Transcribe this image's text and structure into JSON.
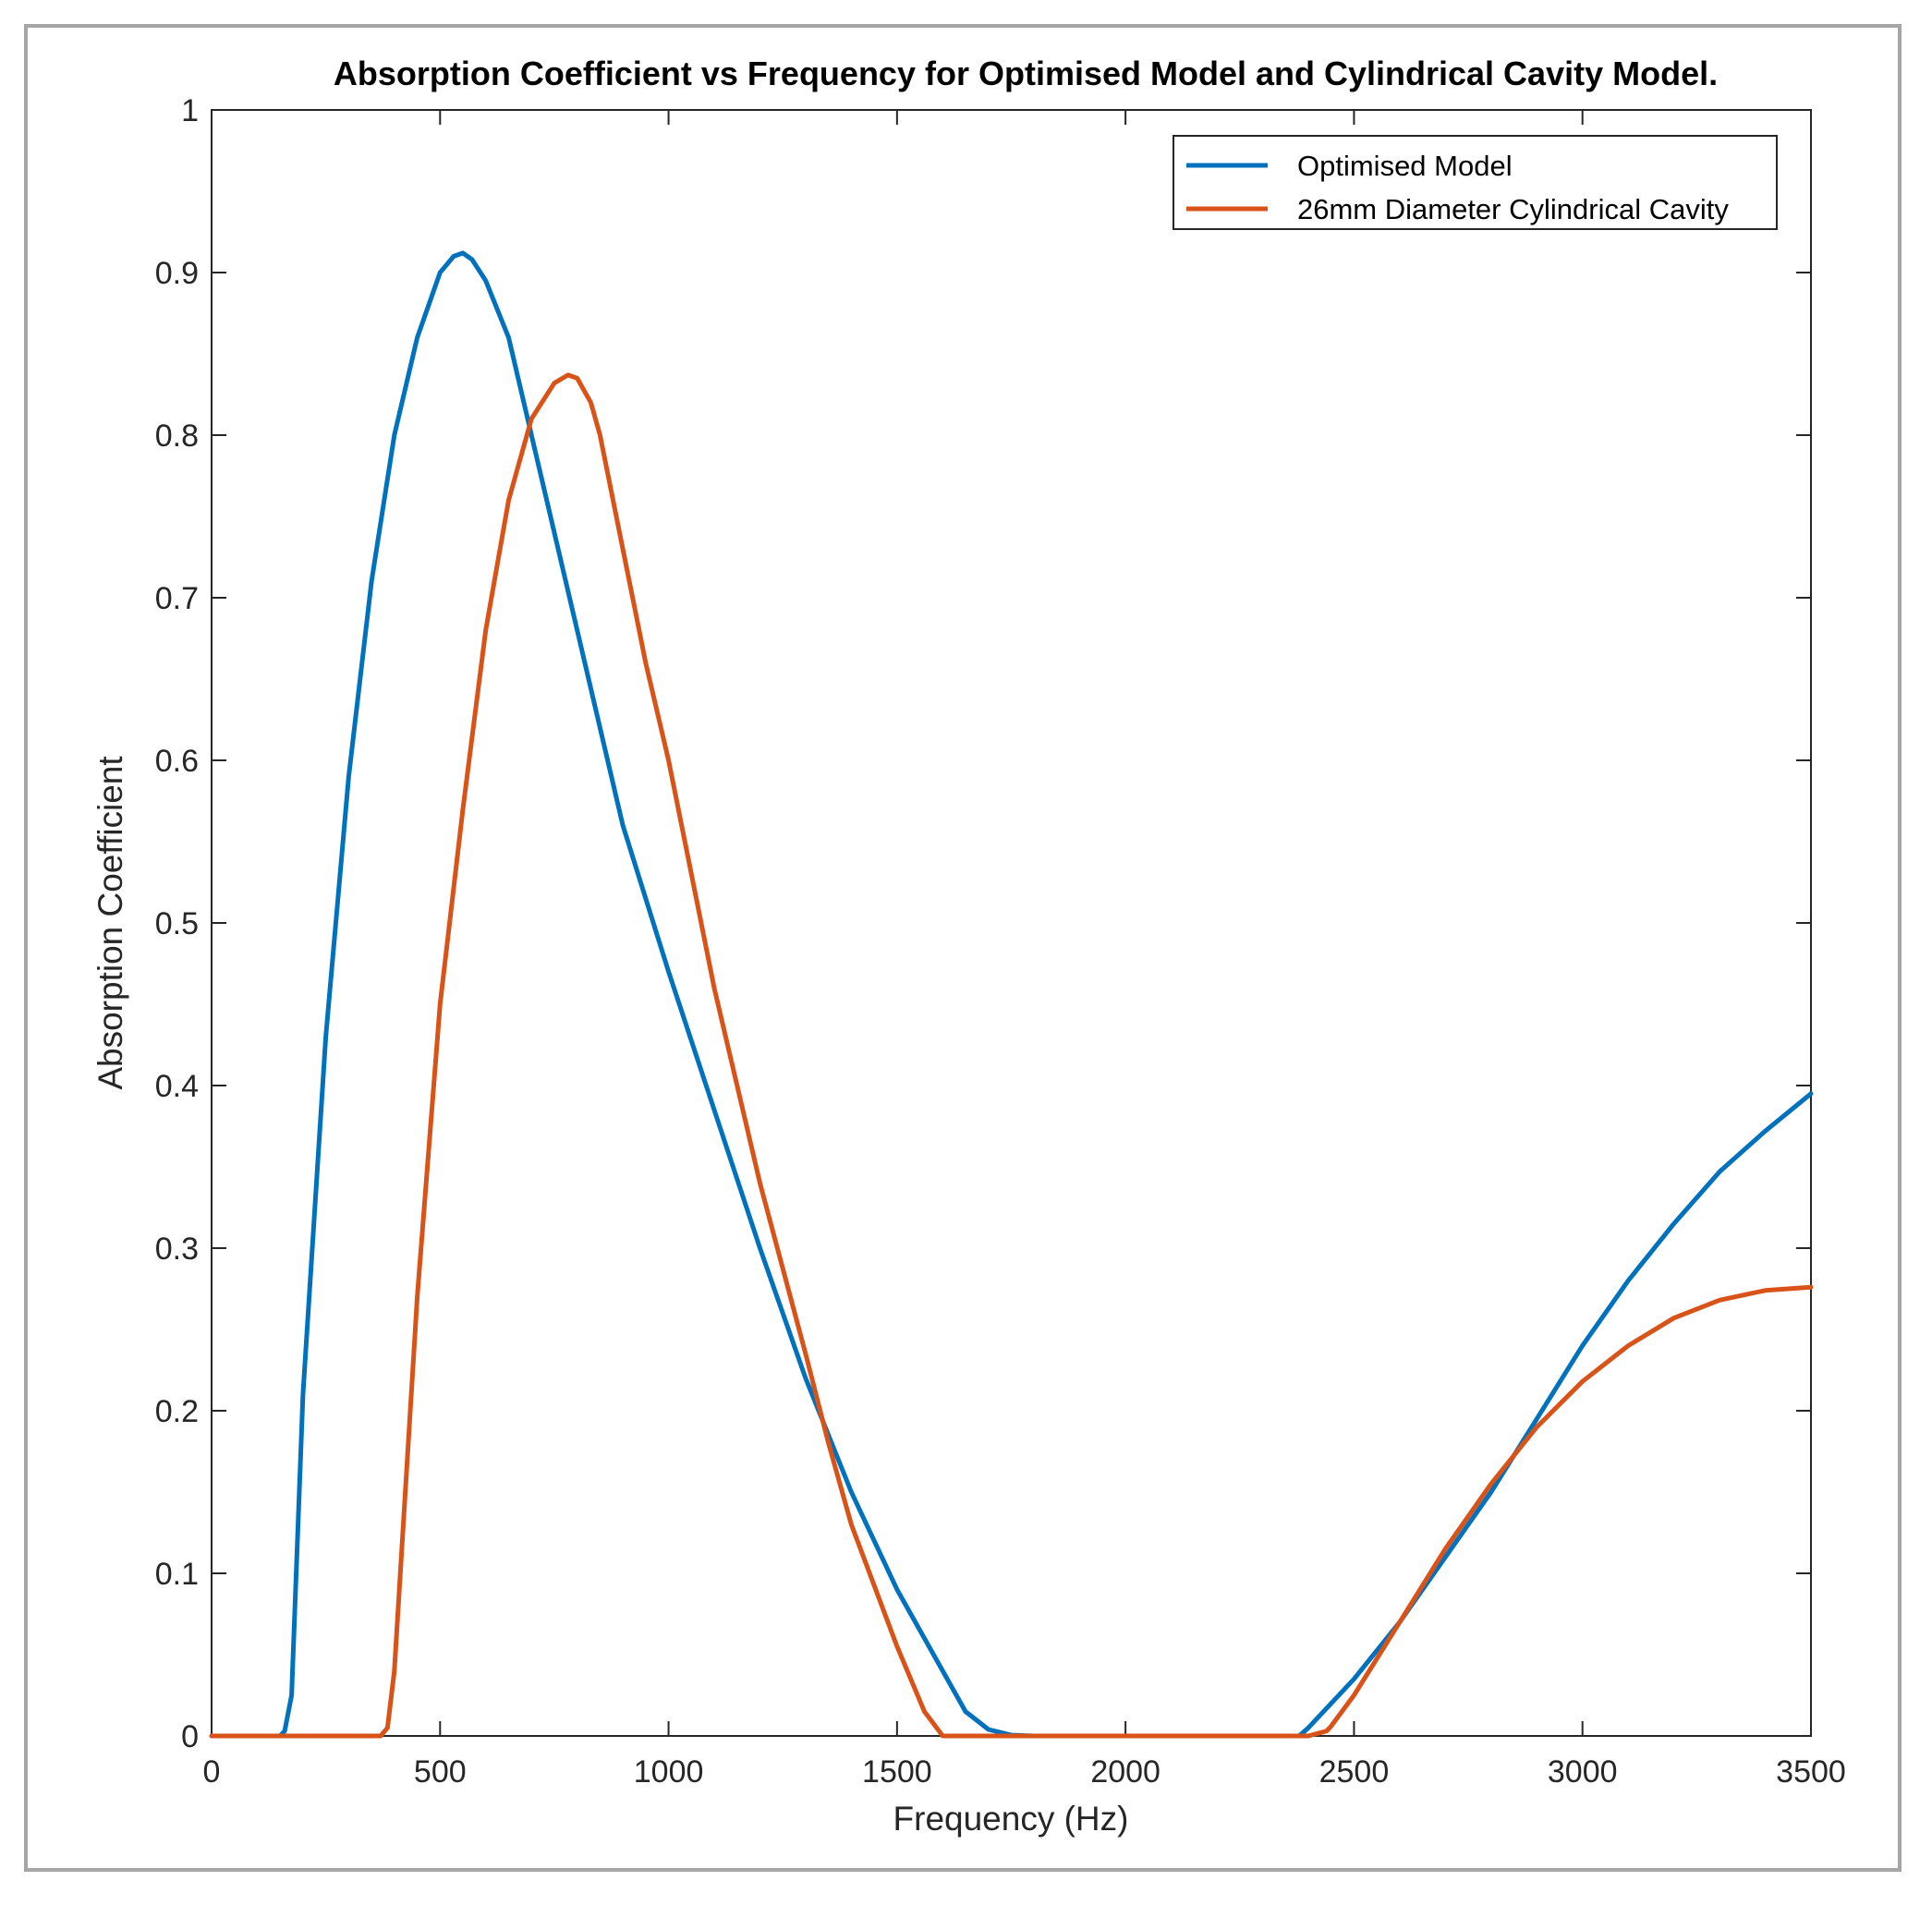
{
  "chart_data": {
    "type": "line",
    "title": "Absorption Coefficient vs Frequency for Optimised Model and Cylindrical Cavity Model.",
    "xlabel": "Frequency (Hz)",
    "ylabel": "Absorption Coefficient",
    "xlim": [
      0,
      3500
    ],
    "ylim": [
      0,
      1
    ],
    "xticks": [
      0,
      500,
      1000,
      1500,
      2000,
      2500,
      3000,
      3500
    ],
    "xtick_labels": [
      "0",
      "500",
      "1000",
      "1500",
      "2000",
      "2500",
      "3000",
      "3500"
    ],
    "yticks": [
      0,
      0.1,
      0.2,
      0.3,
      0.4,
      0.5,
      0.6,
      0.7,
      0.8,
      0.9,
      1
    ],
    "ytick_labels": [
      "0",
      "0.1",
      "0.2",
      "0.3",
      "0.4",
      "0.5",
      "0.6",
      "0.7",
      "0.8",
      "0.9",
      "1"
    ],
    "grid": false,
    "legend_position": "top-right",
    "series": [
      {
        "name": "Optimised Model",
        "color": "#0072BD",
        "x": [
          0,
          150,
          160,
          175,
          200,
          250,
          300,
          350,
          400,
          450,
          500,
          530,
          550,
          570,
          600,
          650,
          700,
          800,
          900,
          1000,
          1100,
          1200,
          1300,
          1400,
          1500,
          1600,
          1650,
          1700,
          1750,
          1800,
          2000,
          2200,
          2380,
          2400,
          2450,
          2500,
          2600,
          2700,
          2800,
          2900,
          3000,
          3100,
          3200,
          3300,
          3400,
          3500
        ],
        "y": [
          0,
          0,
          0.003,
          0.025,
          0.21,
          0.43,
          0.59,
          0.71,
          0.8,
          0.86,
          0.9,
          0.91,
          0.912,
          0.908,
          0.895,
          0.86,
          0.8,
          0.68,
          0.56,
          0.47,
          0.385,
          0.3,
          0.22,
          0.15,
          0.09,
          0.04,
          0.015,
          0.004,
          0.0005,
          0,
          0,
          0,
          0,
          0.005,
          0.02,
          0.035,
          0.07,
          0.11,
          0.15,
          0.195,
          0.24,
          0.28,
          0.315,
          0.347,
          0.372,
          0.395
        ]
      },
      {
        "name": "26mm Diameter Cylindrical Cavity",
        "color": "#D95319",
        "x": [
          0,
          370,
          385,
          400,
          450,
          500,
          550,
          600,
          650,
          700,
          750,
          780,
          800,
          830,
          850,
          900,
          950,
          1000,
          1100,
          1200,
          1300,
          1350,
          1400,
          1500,
          1560,
          1600,
          1620,
          2000,
          2400,
          2440,
          2450,
          2500,
          2600,
          2700,
          2800,
          2900,
          3000,
          3100,
          3200,
          3300,
          3400,
          3500
        ],
        "y": [
          0,
          0,
          0.005,
          0.04,
          0.27,
          0.45,
          0.57,
          0.68,
          0.76,
          0.81,
          0.832,
          0.837,
          0.835,
          0.82,
          0.8,
          0.73,
          0.66,
          0.6,
          0.46,
          0.34,
          0.235,
          0.18,
          0.13,
          0.055,
          0.015,
          0,
          0,
          0,
          0,
          0.003,
          0.006,
          0.025,
          0.07,
          0.115,
          0.155,
          0.19,
          0.218,
          0.24,
          0.257,
          0.268,
          0.274,
          0.276
        ]
      }
    ]
  }
}
